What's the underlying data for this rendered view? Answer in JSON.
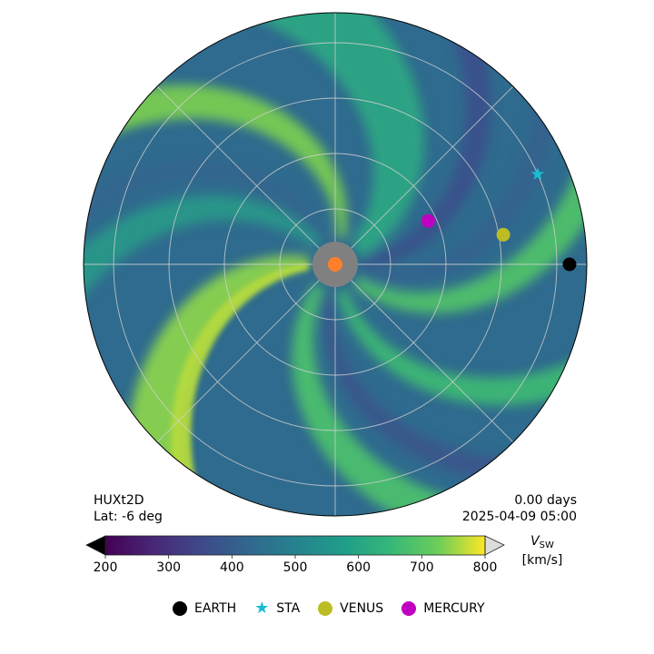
{
  "figure": {
    "model": "HUXt2D",
    "latitude": "Lat:  -6 deg",
    "elapsed": "0.00 days",
    "timestamp": "2025-04-09 05:00"
  },
  "chart_data": {
    "type": "heatmap",
    "projection": "polar",
    "variable": "V_sw",
    "colorbar": {
      "label_main": "V",
      "label_sub": "SW",
      "label_units": "[km/s]",
      "range": [
        200,
        800
      ],
      "ticks": [
        200,
        300,
        400,
        500,
        600,
        700,
        800
      ],
      "colormap": "viridis",
      "extend": "both"
    },
    "grid": true,
    "bodies": [
      {
        "name": "EARTH",
        "marker": "circle",
        "color": "#000000",
        "longitude_deg": 0
      },
      {
        "name": "STA",
        "marker": "star",
        "color": "#17becf",
        "longitude_deg": 24
      },
      {
        "name": "VENUS",
        "marker": "circle",
        "color": "#bcbd22",
        "longitude_deg": 10
      },
      {
        "name": "MERCURY",
        "marker": "circle",
        "color": "#c000c0",
        "longitude_deg": 25
      }
    ]
  }
}
